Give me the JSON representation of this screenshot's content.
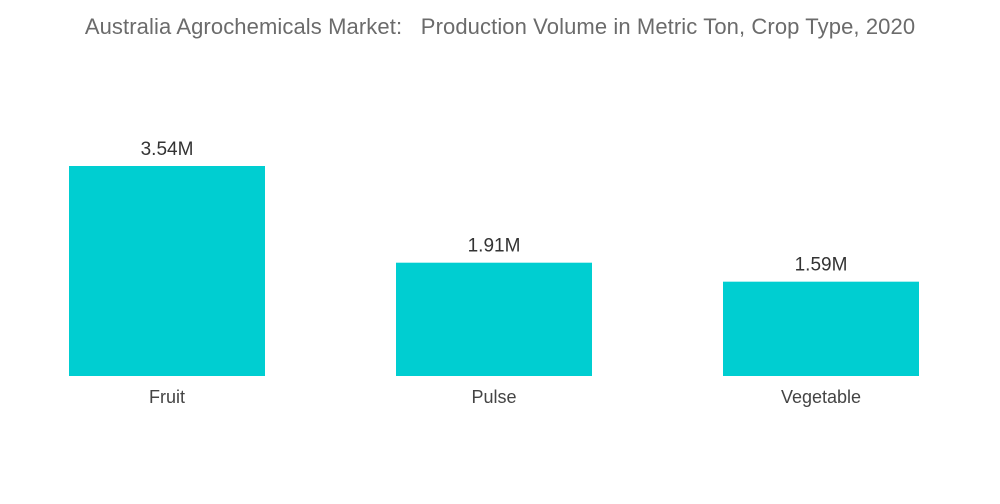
{
  "title": "Australia Agrochemicals Market:   Production Volume in Metric Ton, Crop Type, 2020",
  "colors": {
    "bar": "#00CED1",
    "label": "#333333",
    "tick": "#444444"
  },
  "chart_data": {
    "type": "bar",
    "title": "Australia Agrochemicals Market:   Production Volume in Metric Ton, Crop Type, 2020",
    "categories": [
      "Fruit",
      "Pulse",
      "Vegetable"
    ],
    "values": [
      3.54,
      1.91,
      1.59
    ],
    "value_labels": [
      "3.54M",
      "1.91M",
      "1.59M"
    ],
    "unit": "M",
    "xlabel": "",
    "ylabel": "",
    "ylim": [
      0,
      3.54
    ],
    "grid": false,
    "legend": "none"
  }
}
